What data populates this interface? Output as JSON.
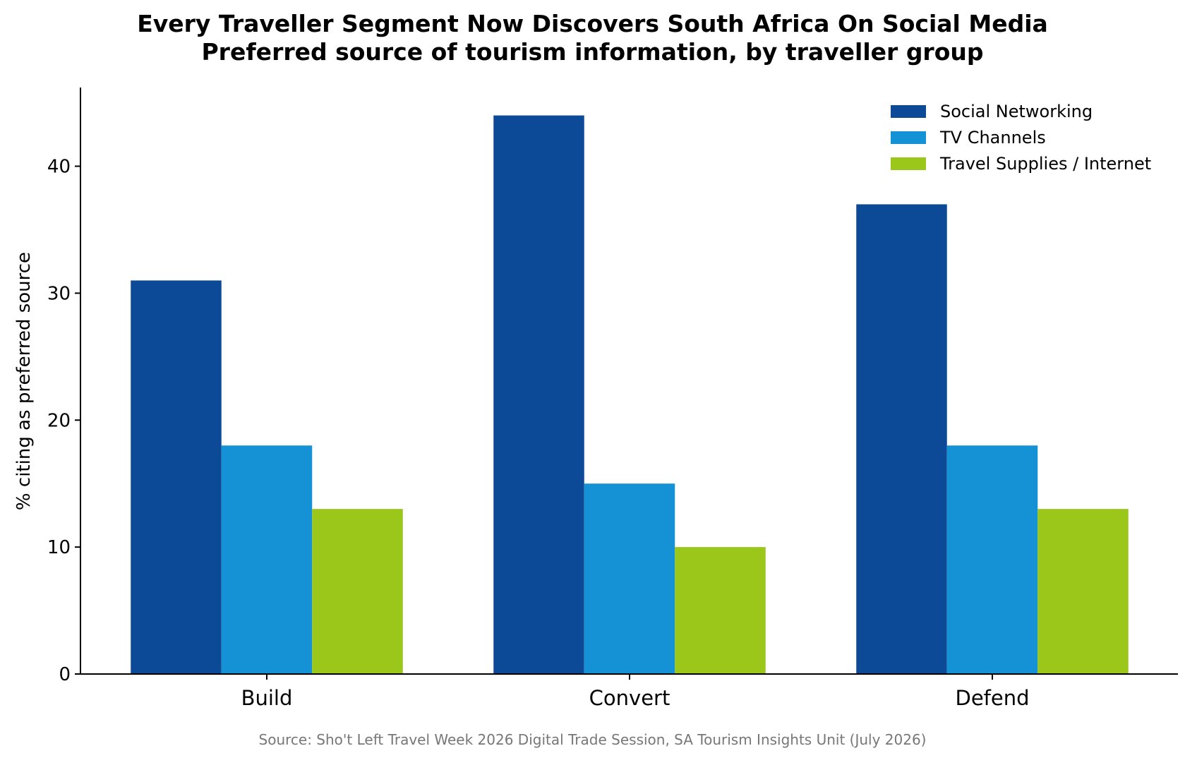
{
  "chart_data": {
    "type": "bar",
    "title": "Every Traveller Segment Now Discovers South Africa On Social Media",
    "subtitle": "Preferred source of tourism information, by traveller group",
    "xlabel": "",
    "ylabel": "% citing as preferred source",
    "categories": [
      "Build",
      "Convert",
      "Defend"
    ],
    "series": [
      {
        "name": "Social Networking",
        "color": "#0c4a97",
        "values": [
          31,
          44,
          37
        ]
      },
      {
        "name": "TV Channels",
        "color": "#1591d5",
        "values": [
          18,
          15,
          18
        ]
      },
      {
        "name": "Travel Supplies / Internet",
        "color": "#9ac719",
        "values": [
          13,
          10,
          13
        ]
      }
    ],
    "ylim": [
      0,
      46.2
    ],
    "yticks": [
      0,
      10,
      20,
      30,
      40
    ],
    "grid": false,
    "legend_position": "top-right"
  },
  "source": "Source: Sho't Left Travel Week 2026 Digital Trade Session, SA Tourism Insights Unit (July 2026)"
}
